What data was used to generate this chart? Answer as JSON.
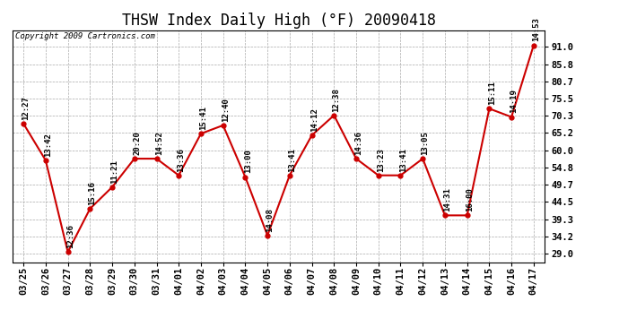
{
  "title": "THSW Index Daily High (°F) 20090418",
  "copyright": "Copyright 2009 Cartronics.com",
  "dates": [
    "03/25",
    "03/26",
    "03/27",
    "03/28",
    "03/29",
    "03/30",
    "03/31",
    "04/01",
    "04/02",
    "04/03",
    "04/04",
    "04/05",
    "04/06",
    "04/07",
    "04/08",
    "04/09",
    "04/10",
    "04/11",
    "04/12",
    "04/13",
    "04/14",
    "04/15",
    "04/16",
    "04/17"
  ],
  "values": [
    68.0,
    57.0,
    29.5,
    42.5,
    49.0,
    57.5,
    57.5,
    52.5,
    65.0,
    67.5,
    52.0,
    34.5,
    52.5,
    64.5,
    70.5,
    57.5,
    52.5,
    52.5,
    57.5,
    40.5,
    40.5,
    72.5,
    70.0,
    91.5
  ],
  "labels": [
    "12:27",
    "13:42",
    "12:36",
    "15:16",
    "11:21",
    "20:20",
    "14:52",
    "13:36",
    "15:41",
    "12:40",
    "13:00",
    "14:08",
    "13:41",
    "14:12",
    "12:38",
    "14:36",
    "13:23",
    "13:41",
    "13:05",
    "14:31",
    "16:00",
    "15:11",
    "14:19",
    "14:53"
  ],
  "line_color": "#cc0000",
  "marker_color": "#cc0000",
  "background_color": "#ffffff",
  "grid_color": "#aaaaaa",
  "title_fontsize": 12,
  "copyright_fontsize": 6.5,
  "label_fontsize": 6.5,
  "tick_fontsize": 7.5,
  "yticks": [
    29.0,
    34.2,
    39.3,
    44.5,
    49.7,
    54.8,
    60.0,
    65.2,
    70.3,
    75.5,
    80.7,
    85.8,
    91.0
  ],
  "ylim": [
    26.5,
    96.0
  ],
  "xlim": [
    -0.5,
    23.5
  ]
}
